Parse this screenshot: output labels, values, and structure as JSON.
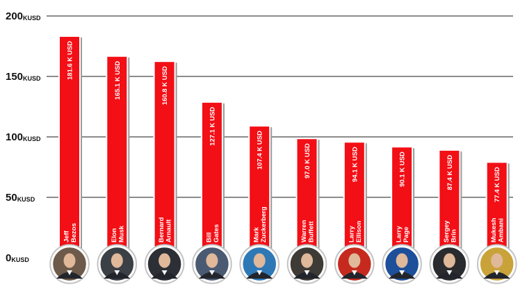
{
  "chart_data": {
    "type": "bar",
    "title": "",
    "xlabel": "",
    "ylabel": "",
    "unit": "KUSD",
    "ylim": [
      0,
      200
    ],
    "yticks": [
      0,
      50,
      100,
      150,
      200
    ],
    "grid": true,
    "bar_color": "#f20f16",
    "categories": [
      {
        "first": "Jeff",
        "last": "Bezos"
      },
      {
        "first": "Elon",
        "last": "Musk"
      },
      {
        "first": "Bernard",
        "last": "Arnault"
      },
      {
        "first": "Bill",
        "last": "Gates"
      },
      {
        "first": "Mark",
        "last": "Zuckerberg"
      },
      {
        "first": "Warren",
        "last": "Buffett"
      },
      {
        "first": "Larry",
        "last": "Ellison"
      },
      {
        "first": "Larry",
        "last": "Page"
      },
      {
        "first": "Sergey",
        "last": "Brin"
      },
      {
        "first": "Mukesh",
        "last": "Ambani"
      }
    ],
    "values": [
      181.6,
      165.1,
      160.8,
      127.1,
      107.4,
      97.0,
      94.1,
      90.1,
      87.4,
      77.4
    ],
    "value_labels": [
      "181.6 K USD",
      "165.1 K USD",
      "160.8 K USD",
      "127.1 K USD",
      "107.4 K USD",
      "97.0 K USD",
      "94.1 K USD",
      "90.1 K USD",
      "87.4 K USD",
      "77.4 K USD"
    ],
    "avatar_colors": [
      "#6d5a4a",
      "#3b3f46",
      "#2c2f35",
      "#4a5a72",
      "#2e78b6",
      "#3e3a36",
      "#c62a1e",
      "#1d4f9a",
      "#2a2b2e",
      "#c9a33a"
    ]
  }
}
